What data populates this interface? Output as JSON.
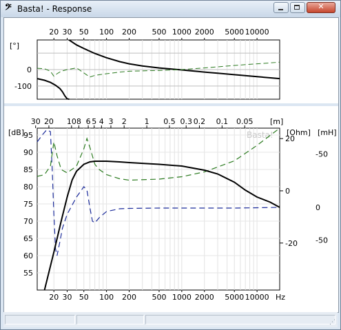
{
  "window": {
    "title": "Basta! - Response",
    "icon": "bass-clef-icon",
    "buttons": [
      "minimize",
      "maximize",
      "close"
    ]
  },
  "chart_data": [
    {
      "type": "line",
      "name_printed": "",
      "ylabel": "[°]",
      "x_scale": "log",
      "xlim": [
        12,
        20000
      ],
      "ylim": [
        -180,
        180
      ],
      "x_ticks_top": [
        "20",
        "30",
        "50",
        "100",
        "200",
        "500",
        "1000",
        "2000",
        "5000",
        "10000"
      ],
      "y_ticks": [
        "0",
        "-100"
      ],
      "grid": true,
      "series": [
        {
          "color": "#000000",
          "style": "solid",
          "x": [
            12,
            15,
            18,
            21,
            24,
            26,
            28,
            30,
            32,
            40,
            50,
            70,
            100,
            150,
            200,
            300,
            500,
            700,
            1000,
            2000,
            3000,
            5000,
            10000,
            20000
          ],
          "y": [
            -55,
            -65,
            -78,
            -95,
            -115,
            -135,
            -160,
            -178,
            179,
            150,
            128,
            98,
            72,
            48,
            35,
            22,
            10,
            4,
            -2,
            -15,
            -22,
            -31,
            -43,
            -55
          ]
        },
        {
          "color": "#2a7a1e",
          "style": "dashed",
          "x": [
            12,
            15,
            18,
            20,
            22,
            25,
            30,
            40,
            50,
            60,
            70,
            100,
            150,
            200,
            500,
            1000,
            2000,
            5000,
            10000,
            20000
          ],
          "y": [
            8,
            5,
            -10,
            -40,
            -25,
            -10,
            0,
            10,
            -20,
            -45,
            -35,
            -25,
            -15,
            -10,
            -5,
            0,
            10,
            25,
            35,
            45
          ]
        }
      ]
    },
    {
      "type": "line",
      "y_axes": [
        {
          "label": "[dB]",
          "ticks": [
            "95",
            "90",
            "85",
            "80",
            "75",
            "70",
            "65",
            "60",
            "55"
          ],
          "range": [
            50,
            97
          ]
        },
        {
          "label": "[Ohm]",
          "ticks": [
            "20",
            "0",
            "-20"
          ],
          "range": [
            -38,
            24
          ]
        },
        {
          "label": "[mH]",
          "ticks": [
            "-50",
            "0",
            "-50"
          ]
        }
      ],
      "x_scale": "log",
      "xlim": [
        12,
        20000
      ],
      "x_ticks_bottom": [
        "20",
        "30",
        "50",
        "100",
        "200",
        "500",
        "1000",
        "2000",
        "5000",
        "10000",
        "Hz"
      ],
      "x_ticks_top": [
        "30",
        "20",
        "10",
        "8",
        "6",
        "5",
        "4",
        "3",
        "2",
        "1",
        "0.5",
        "0.3",
        "0.2",
        "0.1",
        "0.05"
      ],
      "x_top_unit": "[m]",
      "watermark": "Basta!",
      "grid": true,
      "series": [
        {
          "color": "#000000",
          "style": "solid",
          "x": [
            15,
            20,
            25,
            30,
            35,
            40,
            50,
            60,
            70,
            80,
            100,
            150,
            200,
            500,
            1000,
            2000,
            3000,
            5000,
            7000,
            10000,
            15000,
            20000
          ],
          "y": [
            50,
            61,
            70,
            77,
            82,
            84.5,
            86.5,
            87.2,
            87.4,
            87.4,
            87.4,
            87.2,
            87.0,
            86.5,
            86.0,
            84.8,
            83.7,
            81.3,
            79.0,
            77.0,
            75.5,
            74.0
          ]
        },
        {
          "color": "#2a7a1e",
          "style": "dashed",
          "x": [
            12,
            15,
            18,
            20,
            22,
            25,
            30,
            40,
            50,
            55,
            60,
            70,
            80,
            100,
            150,
            200,
            500,
            1000,
            2000,
            5000,
            10000,
            20000
          ],
          "y": [
            83,
            83.5,
            86,
            93,
            89,
            85,
            84,
            86,
            91,
            94,
            91.5,
            86.5,
            85,
            83.5,
            82.3,
            81.9,
            82.2,
            82.9,
            84.3,
            87.5,
            92,
            97
          ]
        },
        {
          "color": "#1a2a9a",
          "style": "dashed",
          "x": [
            12,
            14,
            16,
            18,
            19,
            20,
            21,
            22,
            24,
            26,
            30,
            40,
            50,
            55,
            60,
            65,
            70,
            80,
            100,
            150,
            200,
            500,
            1000,
            5000,
            20000
          ],
          "y": [
            93,
            95,
            96.5,
            96,
            85,
            72,
            62,
            60,
            64,
            68,
            72,
            77,
            80,
            79,
            74,
            70,
            69.5,
            71,
            72.8,
            73.6,
            73.7,
            73.8,
            73.8,
            73.8,
            74
          ]
        }
      ]
    }
  ],
  "statusbar": [
    "",
    "",
    ""
  ]
}
